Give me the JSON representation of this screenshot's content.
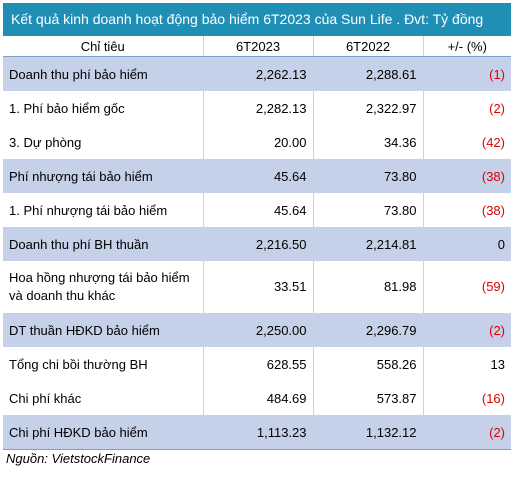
{
  "title": "Kết quả kinh doanh hoạt động bảo hiểm 6T2023 của Sun Life . Đvt: Tỷ đồng",
  "headers": [
    "Chỉ tiêu",
    "6T2023",
    "6T2022",
    "+/- (%)"
  ],
  "rows": [
    {
      "label": "Doanh thu phí bảo hiểm",
      "v2023": "2,262.13",
      "v2022": "2,288.61",
      "change": "(1)",
      "negative": true,
      "highlight": true
    },
    {
      "label": "1. Phí bảo hiểm gốc",
      "v2023": "2,282.13",
      "v2022": "2,322.97",
      "change": "(2)",
      "negative": true,
      "highlight": false
    },
    {
      "label": "3. Dự phòng",
      "v2023": "20.00",
      "v2022": "34.36",
      "change": "(42)",
      "negative": true,
      "highlight": false
    },
    {
      "label": "Phí nhượng tái bảo hiểm",
      "v2023": "45.64",
      "v2022": "73.80",
      "change": "(38)",
      "negative": true,
      "highlight": true
    },
    {
      "label": "1. Phí nhượng tái bảo hiểm",
      "v2023": "45.64",
      "v2022": "73.80",
      "change": "(38)",
      "negative": true,
      "highlight": false
    },
    {
      "label": "Doanh thu phí BH thuần",
      "v2023": "2,216.50",
      "v2022": "2,214.81",
      "change": "0",
      "negative": false,
      "highlight": true
    },
    {
      "label": "Hoa hồng nhượng tái bảo hiểm  và doanh thu khác",
      "v2023": "33.51",
      "v2022": "81.98",
      "change": "(59)",
      "negative": true,
      "highlight": false,
      "tall": true
    },
    {
      "label": "DT thuần HĐKD bảo hiểm",
      "v2023": "2,250.00",
      "v2022": "2,296.79",
      "change": "(2)",
      "negative": true,
      "highlight": true
    },
    {
      "label": "Tổng chi bồi thường BH",
      "v2023": "628.55",
      "v2022": "558.26",
      "change": "13",
      "negative": false,
      "highlight": false
    },
    {
      "label": "Chi phí khác",
      "v2023": "484.69",
      "v2022": "573.87",
      "change": "(16)",
      "negative": true,
      "highlight": false
    },
    {
      "label": "Chi phí HĐKD bảo hiểm",
      "v2023": "1,113.23",
      "v2022": "1,132.12",
      "change": "(2)",
      "negative": true,
      "highlight": true
    }
  ],
  "source": "Nguồn: VietstockFinance"
}
